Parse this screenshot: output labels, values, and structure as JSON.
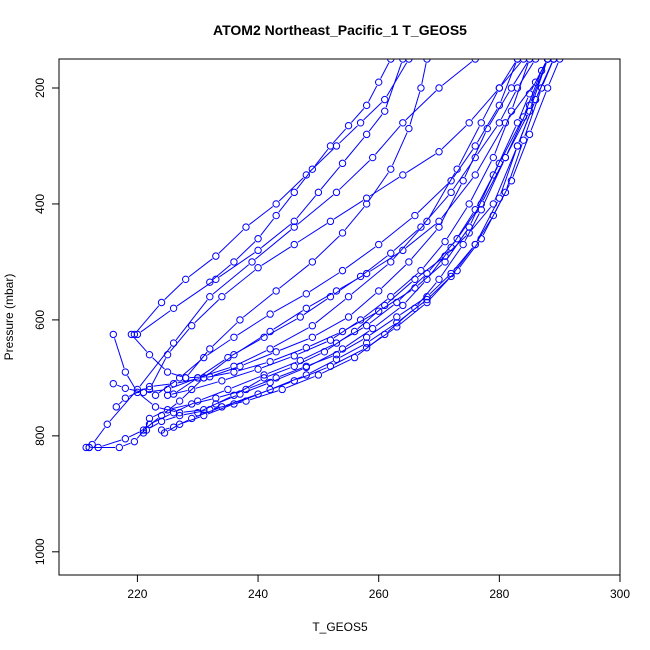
{
  "chart_data": {
    "type": "line",
    "title": "ATOM2 Northeast_Pacific_1 T_GEOS5",
    "xlabel": "T_GEOS5",
    "ylabel": "Pressure (mbar)",
    "xlim": [
      207,
      300
    ],
    "ylim": [
      1040,
      150
    ],
    "y_reversed": true,
    "x_ticks": [
      220,
      240,
      260,
      280,
      300
    ],
    "y_ticks": [
      200,
      400,
      600,
      800,
      1000
    ],
    "grid": false,
    "legend": "none",
    "line_color": "#0000ff",
    "marker": "open-circle",
    "series": [
      {
        "points": [
          [
            211.5,
            820
          ],
          [
            212.5,
            815
          ],
          [
            215,
            780
          ],
          [
            220,
            720
          ],
          [
            226,
            640
          ],
          [
            232,
            560
          ],
          [
            239,
            500
          ],
          [
            246,
            440
          ],
          [
            253,
            380
          ],
          [
            259,
            320
          ],
          [
            264,
            260
          ],
          [
            270,
            200
          ],
          [
            276,
            150
          ]
        ]
      },
      {
        "points": [
          [
            212,
            820
          ],
          [
            213.5,
            820
          ],
          [
            218,
            805
          ],
          [
            221,
            790
          ],
          [
            224,
            765
          ],
          [
            227,
            740
          ],
          [
            231,
            700
          ],
          [
            236,
            660
          ],
          [
            242,
            620
          ],
          [
            248,
            580
          ],
          [
            253,
            550
          ],
          [
            258,
            520
          ],
          [
            264,
            480
          ],
          [
            270,
            430
          ],
          [
            276,
            350
          ],
          [
            281,
            260
          ],
          [
            286,
            190
          ],
          [
            288,
            150
          ]
        ]
      },
      {
        "points": [
          [
            212,
            820
          ],
          [
            217,
            820
          ],
          [
            219.5,
            810
          ],
          [
            222,
            780
          ],
          [
            226,
            760
          ],
          [
            230,
            740
          ],
          [
            235,
            720
          ],
          [
            241,
            695
          ],
          [
            247,
            670
          ],
          [
            253,
            640
          ],
          [
            258,
            610
          ],
          [
            263,
            570
          ],
          [
            268,
            520
          ],
          [
            273,
            460
          ],
          [
            277,
            400
          ],
          [
            281,
            320
          ],
          [
            285,
            240
          ],
          [
            288,
            150
          ]
        ]
      },
      {
        "points": [
          [
            216,
            625
          ],
          [
            218,
            690
          ],
          [
            220,
            725
          ],
          [
            223,
            750
          ],
          [
            227,
            760
          ],
          [
            231,
            755
          ],
          [
            236,
            730
          ],
          [
            241,
            700
          ],
          [
            246,
            680
          ],
          [
            251,
            655
          ],
          [
            256,
            620
          ],
          [
            261,
            575
          ],
          [
            266,
            530
          ],
          [
            271,
            490
          ],
          [
            275,
            450
          ],
          [
            279,
            400
          ],
          [
            283,
            300
          ],
          [
            286,
            220
          ],
          [
            289,
            150
          ]
        ]
      },
      {
        "points": [
          [
            216,
            710
          ],
          [
            218,
            718
          ],
          [
            221,
            725
          ],
          [
            225,
            720
          ],
          [
            230,
            700
          ],
          [
            236,
            680
          ],
          [
            242,
            650
          ],
          [
            249,
            610
          ],
          [
            255,
            560
          ],
          [
            262,
            500
          ],
          [
            268,
            430
          ],
          [
            273,
            340
          ],
          [
            277,
            260
          ],
          [
            280,
            200
          ],
          [
            283,
            150
          ]
        ]
      },
      {
        "points": [
          [
            216.5,
            750
          ],
          [
            218,
            735
          ],
          [
            222,
            715
          ],
          [
            226,
            710
          ],
          [
            231,
            700
          ],
          [
            236,
            690
          ],
          [
            242,
            672
          ],
          [
            248,
            648
          ],
          [
            254,
            620
          ],
          [
            260,
            585
          ],
          [
            266,
            545
          ],
          [
            271,
            500
          ],
          [
            275,
            440
          ],
          [
            279,
            350
          ],
          [
            283,
            260
          ],
          [
            285,
            210
          ],
          [
            288,
            150
          ]
        ]
      },
      {
        "points": [
          [
            219,
            625
          ],
          [
            222,
            660
          ],
          [
            225,
            690
          ],
          [
            228,
            700
          ],
          [
            232,
            698
          ],
          [
            237,
            680
          ],
          [
            243,
            655
          ],
          [
            249,
            630
          ],
          [
            255,
            595
          ],
          [
            260,
            550
          ],
          [
            265,
            500
          ],
          [
            270,
            440
          ],
          [
            274,
            360
          ],
          [
            278,
            270
          ],
          [
            282,
            200
          ],
          [
            285,
            150
          ]
        ]
      },
      {
        "points": [
          [
            219.5,
            625
          ],
          [
            224,
            570
          ],
          [
            228,
            530
          ],
          [
            233,
            490
          ],
          [
            238,
            440
          ],
          [
            243,
            400
          ],
          [
            248,
            350
          ],
          [
            253,
            300
          ],
          [
            257,
            260
          ],
          [
            261,
            220
          ],
          [
            265,
            150
          ]
        ]
      },
      {
        "points": [
          [
            220,
            625
          ],
          [
            226,
            580
          ],
          [
            233,
            530
          ],
          [
            240,
            480
          ],
          [
            246,
            430
          ],
          [
            250,
            380
          ],
          [
            254,
            330
          ],
          [
            258,
            280
          ],
          [
            261,
            240
          ],
          [
            264,
            150
          ]
        ]
      },
      {
        "points": [
          [
            221,
            795
          ],
          [
            222,
            770
          ],
          [
            225,
            755
          ],
          [
            229,
            745
          ],
          [
            233,
            735
          ],
          [
            238,
            720
          ],
          [
            243,
            700
          ],
          [
            248,
            680
          ],
          [
            253,
            660
          ],
          [
            258,
            630
          ],
          [
            263,
            595
          ],
          [
            268,
            560
          ],
          [
            272,
            520
          ],
          [
            276,
            470
          ],
          [
            279,
            420
          ],
          [
            282,
            360
          ],
          [
            285,
            280
          ],
          [
            288,
            200
          ],
          [
            290,
            150
          ]
        ]
      },
      {
        "points": [
          [
            221.5,
            790
          ],
          [
            224,
            775
          ],
          [
            227,
            765
          ],
          [
            232,
            755
          ],
          [
            238,
            740
          ],
          [
            244,
            720
          ],
          [
            250,
            695
          ],
          [
            256,
            665
          ],
          [
            261,
            625
          ],
          [
            266,
            580
          ],
          [
            270,
            530
          ],
          [
            274,
            470
          ],
          [
            277,
            410
          ],
          [
            281,
            320
          ],
          [
            285,
            230
          ],
          [
            288,
            150
          ]
        ]
      },
      {
        "points": [
          [
            222,
            720
          ],
          [
            225,
            660
          ],
          [
            229,
            610
          ],
          [
            234,
            560
          ],
          [
            240,
            510
          ],
          [
            246,
            470
          ],
          [
            252,
            430
          ],
          [
            258,
            390
          ],
          [
            264,
            350
          ],
          [
            270,
            310
          ],
          [
            275,
            260
          ],
          [
            280,
            200
          ],
          [
            284,
            150
          ]
        ]
      },
      {
        "points": [
          [
            223,
            730
          ],
          [
            227,
            700
          ],
          [
            231,
            665
          ],
          [
            236,
            630
          ],
          [
            242,
            590
          ],
          [
            248,
            555
          ],
          [
            254,
            515
          ],
          [
            260,
            470
          ],
          [
            266,
            420
          ],
          [
            272,
            360
          ],
          [
            276,
            300
          ],
          [
            280,
            230
          ],
          [
            283,
            150
          ]
        ]
      },
      {
        "points": [
          [
            224,
            790
          ],
          [
            226,
            785
          ],
          [
            229,
            770
          ],
          [
            234,
            750
          ],
          [
            240,
            728
          ],
          [
            246,
            705
          ],
          [
            252,
            680
          ],
          [
            258,
            648
          ],
          [
            263,
            612
          ],
          [
            268,
            570
          ],
          [
            272,
            525
          ],
          [
            276,
            470
          ],
          [
            280,
            390
          ],
          [
            283,
            300
          ],
          [
            286,
            220
          ],
          [
            289,
            150
          ]
        ]
      },
      {
        "points": [
          [
            224.5,
            795
          ],
          [
            227,
            780
          ],
          [
            231,
            765
          ],
          [
            236,
            745
          ],
          [
            242,
            720
          ],
          [
            248,
            695
          ],
          [
            253,
            668
          ],
          [
            258,
            640
          ],
          [
            263,
            605
          ],
          [
            268,
            565
          ],
          [
            273,
            515
          ],
          [
            277,
            460
          ],
          [
            281,
            380
          ],
          [
            284,
            290
          ],
          [
            287,
            200
          ],
          [
            289,
            150
          ]
        ]
      },
      {
        "points": [
          [
            225,
            730
          ],
          [
            229,
            720
          ],
          [
            234,
            705
          ],
          [
            240,
            685
          ],
          [
            246,
            662
          ],
          [
            252,
            635
          ],
          [
            257,
            600
          ],
          [
            262,
            560
          ],
          [
            267,
            515
          ],
          [
            271,
            465
          ],
          [
            275,
            400
          ],
          [
            279,
            320
          ],
          [
            282,
            240
          ],
          [
            285,
            150
          ]
        ]
      },
      {
        "points": [
          [
            226,
            728
          ],
          [
            230,
            700
          ],
          [
            235,
            665
          ],
          [
            241,
            630
          ],
          [
            247,
            595
          ],
          [
            252,
            560
          ],
          [
            257,
            525
          ],
          [
            262,
            485
          ],
          [
            267,
            440
          ],
          [
            272,
            380
          ],
          [
            276,
            320
          ],
          [
            280,
            260
          ],
          [
            283,
            200
          ],
          [
            286,
            150
          ]
        ]
      },
      {
        "points": [
          [
            228,
            700
          ],
          [
            232,
            650
          ],
          [
            237,
            600
          ],
          [
            243,
            550
          ],
          [
            249,
            500
          ],
          [
            254,
            450
          ],
          [
            258,
            400
          ],
          [
            262,
            340
          ],
          [
            265,
            270
          ],
          [
            267,
            200
          ],
          [
            268,
            150
          ]
        ]
      },
      {
        "points": [
          [
            230,
            760
          ],
          [
            233,
            745
          ],
          [
            237,
            728
          ],
          [
            242,
            708
          ],
          [
            248,
            682
          ],
          [
            254,
            650
          ],
          [
            259,
            615
          ],
          [
            264,
            575
          ],
          [
            268,
            530
          ],
          [
            272,
            475
          ],
          [
            276,
            410
          ],
          [
            280,
            330
          ],
          [
            284,
            250
          ],
          [
            287,
            170
          ],
          [
            288,
            150
          ]
        ]
      },
      {
        "points": [
          [
            232,
            535
          ],
          [
            236,
            500
          ],
          [
            240,
            460
          ],
          [
            243,
            420
          ],
          [
            246,
            380
          ],
          [
            249,
            340
          ],
          [
            252,
            300
          ],
          [
            255,
            265
          ],
          [
            258,
            230
          ],
          [
            260,
            190
          ],
          [
            262,
            150
          ]
        ]
      }
    ]
  }
}
